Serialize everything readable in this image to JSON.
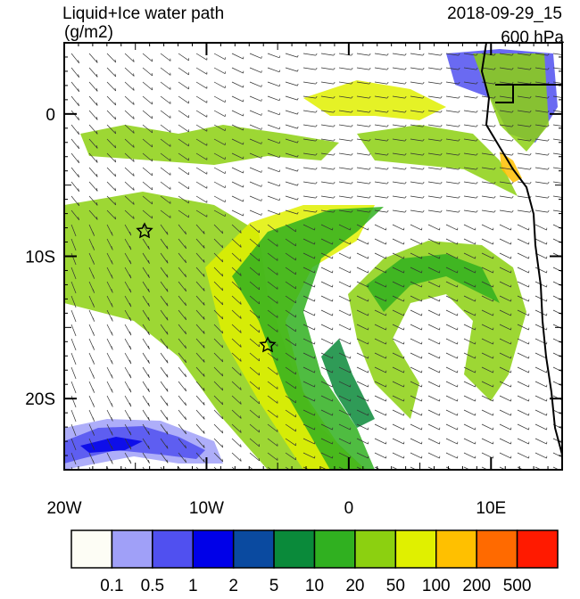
{
  "map": {
    "title": "Liquid+Ice water path",
    "units": "(g/m2)",
    "time": "2018-09-29_15",
    "level": "600 hPa",
    "lon_range": [
      -20,
      15
    ],
    "lat_range": [
      -25,
      5
    ],
    "lon_ticks": [
      {
        "value": -20,
        "label": "20W"
      },
      {
        "value": -10,
        "label": "10W"
      },
      0,
      {
        "value": 10,
        "label": "10E"
      }
    ],
    "lat_ticks": [
      0,
      {
        "value": -10,
        "label": "10S"
      },
      {
        "value": -20,
        "label": "20S"
      }
    ],
    "colorbar": {
      "levels": [
        0.1,
        0.5,
        1,
        2,
        5,
        10,
        20,
        50,
        100,
        200,
        500
      ],
      "colors": [
        "#fdfdf5",
        "#a0a0f8",
        "#5050f0",
        "#0000e8",
        "#0a4aa0",
        "#0a8a3a",
        "#30b020",
        "#8cd010",
        "#e0f000",
        "#ffc000",
        "#ff6a00",
        "#ff1a00"
      ]
    }
  }
}
